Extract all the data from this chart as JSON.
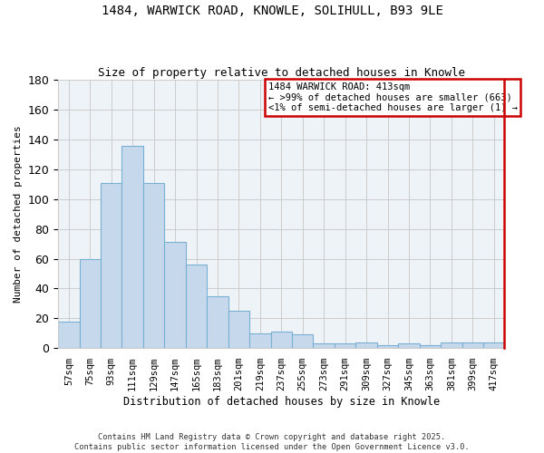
{
  "title_line1": "1484, WARWICK ROAD, KNOWLE, SOLIHULL, B93 9LE",
  "title_line2": "Size of property relative to detached houses in Knowle",
  "xlabel": "Distribution of detached houses by size in Knowle",
  "ylabel": "Number of detached properties",
  "categories": [
    "57sqm",
    "75sqm",
    "93sqm",
    "111sqm",
    "129sqm",
    "147sqm",
    "165sqm",
    "183sqm",
    "201sqm",
    "219sqm",
    "237sqm",
    "255sqm",
    "273sqm",
    "291sqm",
    "309sqm",
    "327sqm",
    "345sqm",
    "363sqm",
    "381sqm",
    "399sqm",
    "417sqm"
  ],
  "values": [
    18,
    60,
    111,
    136,
    111,
    71,
    56,
    35,
    25,
    10,
    11,
    9,
    3,
    3,
    4,
    2,
    3,
    2,
    4,
    4,
    4
  ],
  "bar_color": "#c6d9ec",
  "bar_edge_color": "#7aafd4",
  "highlight_color": "#cc0000",
  "ylim": [
    0,
    180
  ],
  "yticks": [
    0,
    20,
    40,
    60,
    80,
    100,
    120,
    140,
    160,
    180
  ],
  "annotation_text": "1484 WARWICK ROAD: 413sqm\n← >99% of detached houses are smaller (663)\n<1% of semi-detached houses are larger (1) →",
  "annotation_box_color": "#cc0000",
  "footer_line1": "Contains HM Land Registry data © Crown copyright and database right 2025.",
  "footer_line2": "Contains public sector information licensed under the Open Government Licence v3.0.",
  "grid_color": "#cccccc",
  "plot_bg_color": "#eef3f8",
  "background_color": "#ffffff"
}
